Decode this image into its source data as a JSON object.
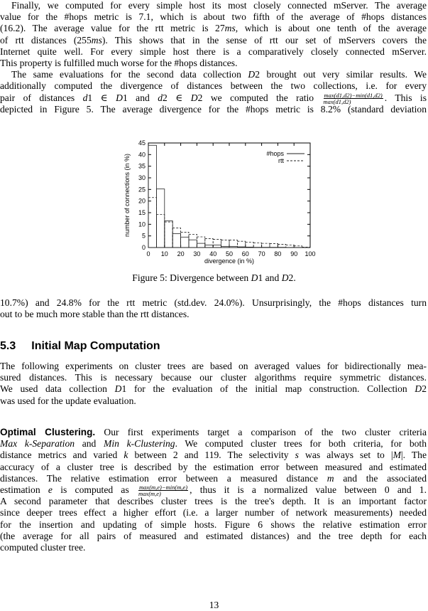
{
  "paragraphs": [
    {
      "id": "p1",
      "lines": [
        {
          "indent": true,
          "segs": [
            "Finally, we computed for every simple host its most closely connected mServer. The average"
          ]
        },
        {
          "segs": [
            "value for the #hops metric is 7.1, which is about two fifth of the average of #hops distances"
          ]
        },
        {
          "segs": [
            "(16.2). The average value for the rtt metric is 27",
            {
              "i": "ms"
            },
            ", which is about one tenth of the average"
          ]
        },
        {
          "segs": [
            "of rtt distances (255",
            {
              "i": "ms"
            },
            "). This shows that in the sense of rtt our set of mServers covers the"
          ]
        },
        {
          "segs": [
            "Internet quite well. For every simple host there is a comparatively closely connected mServer."
          ]
        },
        {
          "last": true,
          "segs": [
            "This property is fulfilled much worse for the #hops distances."
          ]
        },
        {
          "indent": true,
          "segs": [
            "The same evaluations for the second data collection ",
            {
              "i": "D"
            },
            "2 brought out very similar results. We"
          ]
        },
        {
          "segs": [
            "additionally computed the divergence of distances between the two collections, i.e. for every"
          ]
        },
        {
          "segs": [
            "pair of distances ",
            {
              "i": "d"
            },
            "1 ∈ ",
            {
              "i": "D"
            },
            "1 and ",
            {
              "i": "d"
            },
            "2 ∈ ",
            {
              "i": "D"
            },
            "2 we computed the ratio ",
            {
              "f": [
                "max(d1,d2)−min(d1,d2)",
                "max(d1,d2)"
              ]
            },
            ". This is"
          ]
        },
        {
          "segs": [
            "depicted in Figure 5. The average divergence for the #hops metric is 8.2% (standard deviation"
          ]
        }
      ]
    },
    {
      "id": "p3",
      "lines": [
        {
          "segs": [
            "10.7%) and 24.8% for the rtt metric (std.dev. 24.0%). Unsurprisingly, the #hops distances turn"
          ]
        },
        {
          "last": true,
          "segs": [
            "out to be much more stable than the rtt distances."
          ]
        }
      ]
    },
    {
      "id": "p4",
      "lines": [
        {
          "segs": [
            "The following experiments on cluster trees are based on averaged values for bidirectionally mea-"
          ]
        },
        {
          "segs": [
            "sured distances. This is necessary because our cluster algorithms require symmetric distances."
          ]
        },
        {
          "segs": [
            "We used data collection ",
            {
              "i": "D"
            },
            "1 for the evaluation of the initial map construction. Collection ",
            {
              "i": "D"
            },
            "2"
          ]
        },
        {
          "last": true,
          "segs": [
            "was used for the update evaluation."
          ]
        }
      ]
    },
    {
      "id": "p5",
      "lines": [
        {
          "segs": [
            {
              "b": "Optimal Clustering."
            },
            "  Our first experiments target a comparison of the two cluster criteria"
          ]
        },
        {
          "segs": [
            {
              "i": "Max k-Separation"
            },
            " and ",
            {
              "i": "Min k-Clustering"
            },
            ". We computed cluster trees for both criteria, for both"
          ]
        },
        {
          "segs": [
            "distance metrics and varied ",
            {
              "i": "k"
            },
            " between 2 and 119. The selectivity ",
            {
              "i": "s"
            },
            " was always set to |",
            {
              "i": "M"
            },
            "|. The"
          ]
        },
        {
          "segs": [
            "accuracy of a cluster tree is described by the estimation error between measured and estimated"
          ]
        },
        {
          "segs": [
            "distances. The relative estimation error between a measured distance ",
            {
              "i": "m"
            },
            " and the associated"
          ]
        },
        {
          "segs": [
            "estimation ",
            {
              "i": "e"
            },
            " is computed as ",
            {
              "f": [
                "max(m,e)−min(m,e)",
                "max(m,e)"
              ]
            },
            ", thus it is a normalized value between 0 and 1."
          ]
        },
        {
          "segs": [
            "A second parameter that describes cluster trees is the tree's depth. It is an important factor"
          ]
        },
        {
          "segs": [
            "since deeper trees effect a higher effort (i.e. a larger number of network measurements) needed"
          ]
        },
        {
          "segs": [
            "for the insertion and updating of simple hosts. Figure 6 shows the relative estimation error"
          ]
        },
        {
          "segs": [
            "(the average for all pairs of measured and estimated distances) and the tree depth for each"
          ]
        },
        {
          "last": true,
          "segs": [
            "computed cluster tree."
          ]
        }
      ]
    }
  ],
  "figure_caption": "Figure 5: Divergence between D1 and D2.",
  "section": {
    "number": "5.3",
    "title": "Initial Map Computation"
  },
  "page_number": "13",
  "chart_data": {
    "type": "bar",
    "style": "step histogram",
    "xlabel": "divergence (in %)",
    "ylabel": "number of connections (in %)",
    "xlim": [
      0,
      100
    ],
    "ylim": [
      0,
      45
    ],
    "xticks": [
      0,
      10,
      20,
      30,
      40,
      50,
      60,
      70,
      80,
      90,
      100
    ],
    "yticks": [
      0,
      5,
      10,
      15,
      20,
      25,
      30,
      35,
      40,
      45
    ],
    "bin_edges": [
      0,
      5,
      10,
      15,
      20,
      25,
      30,
      35,
      40,
      45,
      50,
      55,
      60,
      65,
      70,
      75,
      80,
      85,
      90,
      95,
      100
    ],
    "legend_position": "top-right",
    "grid": false,
    "series": [
      {
        "name": "#hops",
        "line": "solid",
        "values": [
          44,
          25.2,
          11.5,
          6,
          4.5,
          3.3,
          1.8,
          1.1,
          1.1,
          0.5,
          0.5,
          0.3,
          0.2,
          0.1,
          0.1,
          0.1,
          0.1,
          0.05,
          0.05,
          0
        ]
      },
      {
        "name": "rtt",
        "line": "dashed",
        "values": [
          21.5,
          14.2,
          11,
          8.4,
          6.6,
          5.7,
          4.6,
          3.8,
          3.5,
          3.2,
          3.2,
          2.7,
          2.3,
          2.0,
          1.8,
          1.7,
          1.4,
          1.1,
          0.7,
          0.2
        ]
      }
    ]
  }
}
